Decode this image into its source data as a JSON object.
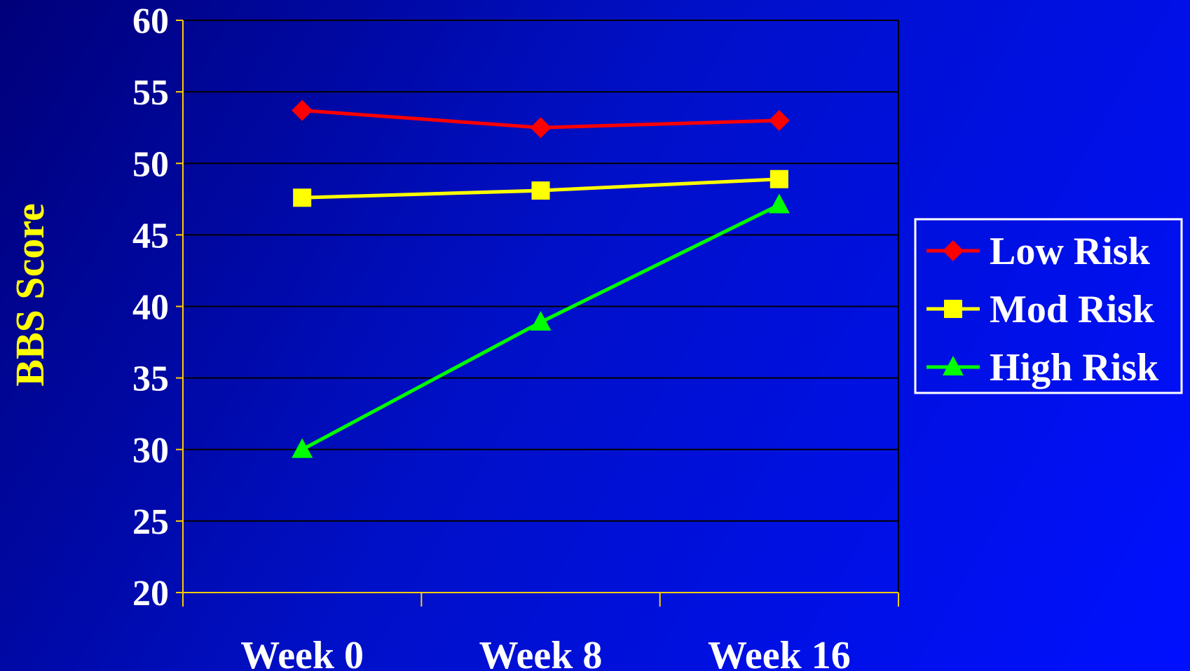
{
  "chart_data": {
    "type": "line",
    "categories": [
      "Week 0",
      "Week 8",
      "Week 16"
    ],
    "series": [
      {
        "name": "Low Risk",
        "values": [
          53.7,
          52.5,
          53.0
        ],
        "color": "#ff0000",
        "marker": "diamond"
      },
      {
        "name": "Mod Risk",
        "values": [
          47.6,
          48.1,
          48.9
        ],
        "color": "#ffff00",
        "marker": "square"
      },
      {
        "name": "High Risk",
        "values": [
          30.0,
          38.9,
          47.1
        ],
        "color": "#00ff00",
        "marker": "triangle"
      }
    ],
    "ylabel": "BBS Score",
    "ylim": [
      20,
      60
    ],
    "yticks": [
      20,
      25,
      30,
      35,
      40,
      45,
      50,
      55,
      60
    ],
    "grid": true,
    "legend_position": "right"
  },
  "colors": {
    "axis": "#ffcc00",
    "grid": "#000000",
    "legend_border": "#ffffff"
  }
}
